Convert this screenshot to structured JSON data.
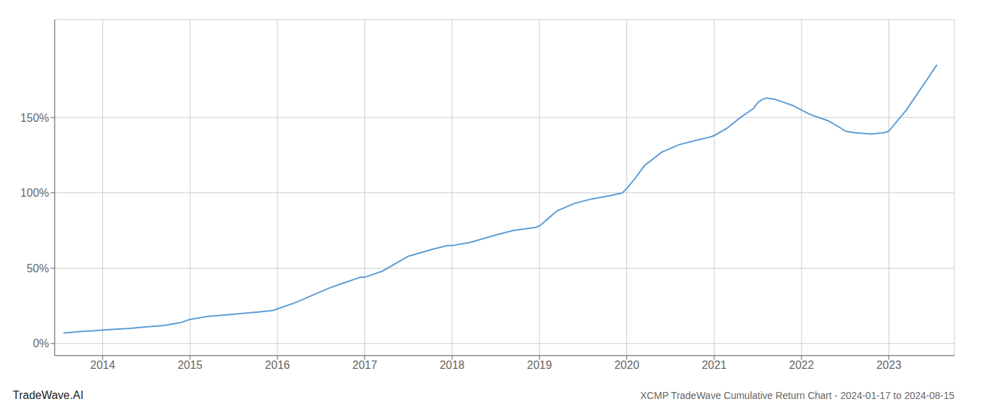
{
  "chart_data": {
    "type": "line",
    "title": "XCMP TradeWave Cumulative Return Chart - 2024-01-17 to 2024-08-15",
    "annotations": [
      {
        "text": "TradeWave.AI"
      }
    ],
    "color": "#5b9bd5",
    "grid": true,
    "x": [
      2013.55,
      2013.65,
      2013.75,
      2013.9,
      2014.0,
      2014.15,
      2014.3,
      2014.5,
      2014.7,
      2014.9,
      2015.0,
      2015.1,
      2015.2,
      2015.4,
      2015.6,
      2015.8,
      2015.95,
      2016.0,
      2016.2,
      2016.4,
      2016.6,
      2016.8,
      2016.95,
      2017.0,
      2017.2,
      2017.5,
      2017.8,
      2017.95,
      2018.0,
      2018.2,
      2018.5,
      2018.7,
      2018.95,
      2019.0,
      2019.1,
      2019.2,
      2019.4,
      2019.6,
      2019.8,
      2019.95,
      2020.0,
      2020.1,
      2020.2,
      2020.4,
      2020.6,
      2020.8,
      2020.95,
      2021.0,
      2021.15,
      2021.3,
      2021.45,
      2021.5,
      2021.55,
      2021.6,
      2021.7,
      2021.8,
      2021.9,
      2022.0,
      2022.1,
      2022.3,
      2022.45,
      2022.5,
      2022.6,
      2022.7,
      2022.8,
      2022.95,
      2023.0,
      2023.2,
      2023.4,
      2023.55
    ],
    "values": [
      7,
      7.5,
      8,
      8.5,
      9,
      9.5,
      10,
      11,
      12,
      14,
      16,
      17,
      18,
      19,
      20,
      21,
      22,
      23,
      27,
      32,
      37,
      41,
      44,
      44,
      48,
      58,
      63,
      65,
      65,
      67,
      72,
      75,
      77,
      78,
      83,
      88,
      93,
      96,
      98,
      100,
      103,
      110,
      118,
      127,
      132,
      135,
      137,
      138,
      143,
      150,
      156,
      160,
      162,
      163,
      162,
      160,
      158,
      155,
      152,
      148,
      143,
      141,
      140,
      139.5,
      139,
      140,
      141,
      155,
      172,
      185
    ],
    "xlim": [
      2013.45,
      2023.75
    ],
    "xticks": [
      2014,
      2015,
      2016,
      2017,
      2018,
      2019,
      2020,
      2021,
      2022,
      2023
    ],
    "ylim": [
      -8,
      215
    ],
    "yticks": [
      {
        "value": 0,
        "label": "0%"
      },
      {
        "value": 50,
        "label": "50%"
      },
      {
        "value": 100,
        "label": "100%"
      },
      {
        "value": 150,
        "label": "150%"
      }
    ]
  }
}
